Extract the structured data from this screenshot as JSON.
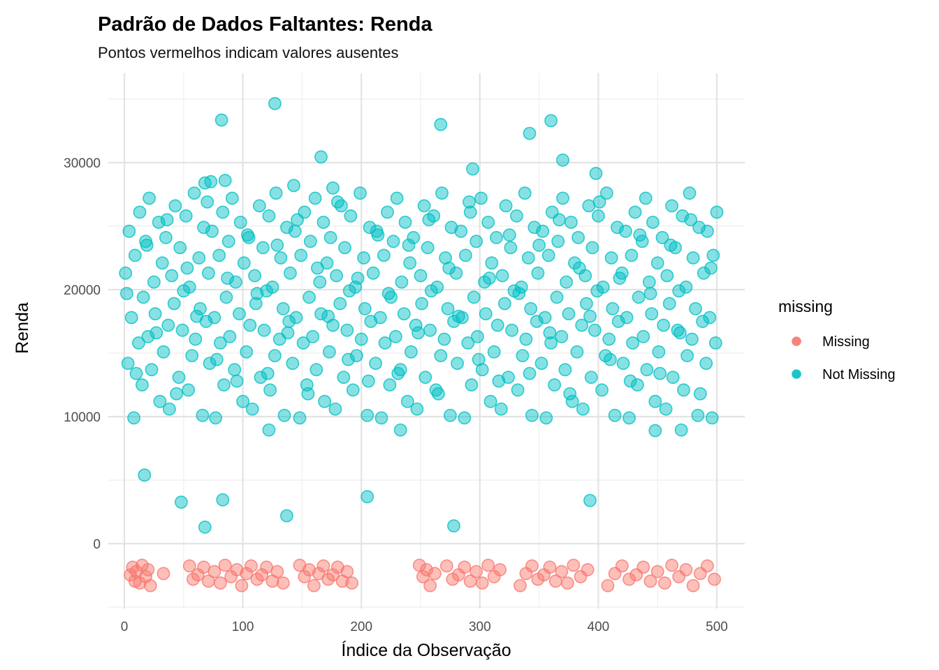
{
  "title": "Padrão de Dados Faltantes: Renda",
  "subtitle": "Pontos vermelhos indicam valores ausentes",
  "x_axis": {
    "label": "Índice da Observação",
    "ticks": [
      0,
      100,
      200,
      300,
      400,
      500
    ]
  },
  "y_axis": {
    "label": "Renda",
    "ticks": [
      0,
      10000,
      20000,
      30000
    ]
  },
  "legend": {
    "title": "missing",
    "items": [
      {
        "label": "Missing",
        "color": "#F8766D"
      },
      {
        "label": "Not Missing",
        "color": "#00BFC4"
      }
    ]
  },
  "colors": {
    "missing": "#F8766D",
    "not_missing": "#00BFC4",
    "grid_major": "#E3E3E3",
    "grid_minor": "#F1F1F1",
    "tick_text": "#4D4D4D",
    "background": "#FFFFFF"
  },
  "chart_data": {
    "type": "scatter",
    "title": "Padrão de Dados Faltantes: Renda",
    "subtitle": "Pontos vermelhos indicam valores ausentes",
    "xlabel": "Índice da Observação",
    "ylabel": "Renda",
    "xlim": [
      -14,
      523
    ],
    "ylim": [
      -5100,
      36800
    ],
    "x_ticks": [
      0,
      100,
      200,
      300,
      400,
      500
    ],
    "x_minor_ticks": [
      50,
      150,
      250,
      350,
      450
    ],
    "y_ticks": [
      0,
      10000,
      20000,
      30000
    ],
    "y_minor_ticks": [
      -5000,
      5000,
      15000,
      25000,
      35000
    ],
    "grid": "major+minor",
    "legend_position": "right",
    "legend_title": "missing",
    "series": [
      {
        "name": "Missing",
        "color": "#F8766D",
        "x": [
          5,
          7,
          9,
          10,
          13,
          15,
          18,
          20,
          22,
          33,
          55,
          58,
          62,
          67,
          71,
          76,
          81,
          85,
          90,
          95,
          99,
          103,
          107,
          112,
          116,
          120,
          125,
          129,
          134,
          148,
          152,
          156,
          160,
          164,
          168,
          172,
          176,
          180,
          184,
          188,
          192,
          249,
          252,
          255,
          258,
          262,
          272,
          277,
          282,
          287,
          292,
          297,
          302,
          307,
          312,
          317,
          334,
          339,
          344,
          349,
          354,
          359,
          364,
          369,
          374,
          379,
          385,
          391,
          408,
          414,
          420,
          426,
          432,
          438,
          444,
          450,
          456,
          462,
          468,
          474,
          480,
          486,
          492,
          498
        ],
        "y": [
          -2450,
          -1850,
          -2950,
          -2200,
          -3100,
          -1700,
          -2600,
          -2050,
          -3300,
          -2350,
          -1750,
          -2800,
          -2450,
          -1850,
          -2950,
          -2200,
          -3100,
          -1700,
          -2600,
          -2050,
          -3300,
          -2350,
          -1750,
          -2800,
          -2450,
          -1850,
          -2950,
          -2200,
          -3100,
          -1700,
          -2600,
          -2050,
          -3300,
          -2350,
          -1750,
          -2800,
          -2450,
          -1850,
          -2950,
          -2200,
          -3100,
          -1700,
          -2600,
          -2050,
          -3300,
          -2350,
          -1750,
          -2800,
          -2450,
          -1850,
          -2950,
          -2200,
          -3100,
          -1700,
          -2600,
          -2050,
          -3300,
          -2350,
          -1750,
          -2800,
          -2450,
          -1850,
          -2950,
          -2200,
          -3100,
          -1700,
          -2600,
          -2050,
          -3300,
          -2350,
          -1750,
          -2800,
          -2450,
          -1850,
          -2950,
          -2200,
          -3100,
          -1700,
          -2600,
          -2050,
          -3300,
          -2350,
          -1750,
          -2800
        ]
      },
      {
        "name": "Not Missing",
        "color": "#00BFC4",
        "x": [
          1,
          3,
          4,
          6,
          8,
          9,
          12,
          13,
          15,
          16,
          18,
          20,
          21,
          23,
          25,
          26,
          29,
          30,
          32,
          33,
          35,
          37,
          38,
          40,
          42,
          43,
          46,
          47,
          49,
          50,
          52,
          54,
          55,
          57,
          59,
          60,
          63,
          64,
          66,
          67,
          69,
          71,
          72,
          74,
          76,
          77,
          80,
          81,
          83,
          84,
          86,
          88,
          89,
          91,
          93,
          94,
          97,
          98,
          100,
          101,
          103,
          105,
          106,
          108,
          110,
          111,
          114,
          115,
          117,
          118,
          120,
          122,
          123,
          125,
          127,
          128,
          131,
          132,
          134,
          135,
          137,
          139,
          140,
          142,
          144,
          145,
          148,
          149,
          151,
          152,
          154,
          156,
          157,
          159,
          161,
          162,
          165,
          166,
          168,
          169,
          171,
          173,
          174,
          176,
          178,
          179,
          182,
          183,
          185,
          186,
          188,
          190,
          191,
          193,
          195,
          196,
          199,
          200,
          202,
          203,
          205,
          207,
          208,
          210,
          212,
          213,
          216,
          217,
          219,
          220,
          222,
          224,
          225,
          227,
          229,
          230,
          233,
          234,
          236,
          237,
          239,
          241,
          242,
          244,
          246,
          247,
          250,
          251,
          253,
          254,
          256,
          258,
          259,
          261,
          263,
          264,
          267,
          268,
          270,
          271,
          273,
          275,
          276,
          278,
          280,
          281,
          284,
          285,
          287,
          288,
          290,
          292,
          293,
          295,
          297,
          298,
          301,
          302,
          304,
          305,
          307,
          309,
          310,
          312,
          314,
          315,
          318,
          319,
          321,
          322,
          324,
          326,
          327,
          329,
          331,
          332,
          335,
          336,
          338,
          339,
          341,
          343,
          344,
          346,
          348,
          349,
          352,
          353,
          355,
          356,
          358,
          360,
          361,
          363,
          365,
          366,
          369,
          370,
          372,
          373,
          375,
          377,
          378,
          380,
          382,
          383,
          386,
          387,
          389,
          390,
          392,
          394,
          395,
          397,
          399,
          400,
          403,
          404,
          406,
          407,
          409,
          411,
          412,
          414,
          416,
          417,
          420,
          421,
          423,
          424,
          426,
          428,
          429,
          431,
          433,
          434,
          437,
          438,
          440,
          441,
          443,
          445,
          446,
          448,
          450,
          451,
          454,
          455,
          457,
          458,
          460,
          462,
          463,
          465,
          467,
          468,
          471,
          472,
          474,
          475,
          477,
          479,
          480,
          482,
          484,
          485,
          488,
          489,
          491,
          492,
          494,
          496,
          497,
          499,
          500,
          2,
          10,
          19,
          27,
          36,
          44,
          53,
          61,
          70,
          78,
          87,
          95,
          104,
          112,
          121,
          129,
          138,
          146,
          155,
          163,
          172,
          180,
          189,
          197,
          206,
          214,
          223,
          231,
          240,
          248,
          257,
          265,
          274,
          282,
          291,
          299,
          308,
          316,
          325,
          333,
          342,
          350,
          359,
          367,
          376,
          384,
          393,
          401,
          410,
          418,
          427,
          435,
          444,
          452,
          461,
          469,
          478,
          486,
          495,
          127,
          82,
          267,
          360,
          342,
          166,
          370,
          294,
          398,
          68,
          73,
          85,
          143,
          176,
          68,
          278,
          137,
          205,
          83,
          393,
          17,
          48,
          122,
          233,
          448,
          470
        ],
        "y": [
          21300,
          14200,
          24600,
          17800,
          9900,
          22700,
          15800,
          26100,
          12500,
          19400,
          23800,
          16300,
          27200,
          13700,
          20600,
          18100,
          25300,
          11200,
          22100,
          15100,
          24100,
          17200,
          10600,
          21100,
          18900,
          26600,
          13100,
          23300,
          16800,
          19900,
          25800,
          12100,
          20200,
          14800,
          27600,
          16100,
          22500,
          18500,
          10100,
          24900,
          17500,
          21300,
          14200,
          24600,
          17800,
          9900,
          22700,
          15800,
          26100,
          12500,
          19400,
          23800,
          16300,
          27200,
          13700,
          20600,
          18100,
          25300,
          11200,
          22100,
          15100,
          24100,
          17200,
          10600,
          21100,
          18900,
          26600,
          13100,
          23300,
          16800,
          19900,
          25800,
          12100,
          20200,
          14800,
          27600,
          16100,
          22500,
          18500,
          10100,
          24900,
          17500,
          21300,
          14200,
          24600,
          17800,
          9900,
          22700,
          15800,
          26100,
          12500,
          19400,
          23800,
          16300,
          27200,
          13700,
          20600,
          18100,
          25300,
          11200,
          22100,
          15100,
          24100,
          17200,
          10600,
          21100,
          18900,
          26600,
          13100,
          23300,
          16800,
          19900,
          25800,
          12100,
          20200,
          14800,
          27600,
          16100,
          22500,
          18500,
          10100,
          24900,
          17500,
          21300,
          14200,
          24600,
          17800,
          9900,
          22700,
          15800,
          26100,
          12500,
          19400,
          23800,
          16300,
          27200,
          13700,
          20600,
          18100,
          25300,
          11200,
          22100,
          15100,
          24100,
          17200,
          10600,
          21100,
          18900,
          26600,
          13100,
          23300,
          16800,
          19900,
          25800,
          12100,
          20200,
          14800,
          27600,
          16100,
          22500,
          18500,
          10100,
          24900,
          17500,
          21300,
          14200,
          24600,
          17800,
          9900,
          22700,
          15800,
          26100,
          12500,
          19400,
          23800,
          16300,
          27200,
          13700,
          20600,
          18100,
          25300,
          11200,
          22100,
          15100,
          24100,
          17200,
          10600,
          21100,
          18900,
          26600,
          13100,
          23300,
          16800,
          19900,
          25800,
          12100,
          20200,
          14800,
          27600,
          16100,
          22500,
          18500,
          10100,
          24900,
          17500,
          21300,
          14200,
          24600,
          17800,
          9900,
          22700,
          15800,
          26100,
          12500,
          19400,
          23800,
          16300,
          27200,
          13700,
          20600,
          18100,
          25300,
          11200,
          22100,
          15100,
          24100,
          17200,
          10600,
          21100,
          18900,
          26600,
          13100,
          23300,
          16800,
          19900,
          25800,
          12100,
          20200,
          14800,
          27600,
          16100,
          22500,
          18500,
          10100,
          24900,
          17500,
          21300,
          14200,
          24600,
          17800,
          9900,
          22700,
          15800,
          26100,
          12500,
          19400,
          23800,
          16300,
          27200,
          13700,
          20600,
          18100,
          25300,
          11200,
          22100,
          15100,
          24100,
          17200,
          10600,
          21100,
          18900,
          26600,
          13100,
          23300,
          16800,
          19900,
          25800,
          12100,
          20200,
          14800,
          27600,
          16100,
          22500,
          18500,
          10100,
          24900,
          17500,
          21300,
          14200,
          24600,
          17800,
          9900,
          22700,
          15800,
          26100,
          19700,
          13400,
          23500,
          16600,
          25500,
          11800,
          21700,
          17900,
          26900,
          14500,
          20900,
          12800,
          24300,
          19700,
          13400,
          23500,
          16600,
          25500,
          11800,
          21700,
          17900,
          26900,
          14500,
          20900,
          12800,
          24300,
          19700,
          13400,
          23500,
          16600,
          25500,
          11800,
          21700,
          17900,
          26900,
          14500,
          20900,
          12800,
          24300,
          19700,
          13400,
          23500,
          16600,
          25500,
          11800,
          21700,
          17900,
          26900,
          14500,
          20900,
          12800,
          24300,
          19700,
          13400,
          23500,
          16600,
          25500,
          11800,
          21700,
          34650,
          33350,
          33000,
          33300,
          32300,
          30450,
          30200,
          29500,
          29150,
          28400,
          28500,
          28600,
          28200,
          28000,
          1300,
          1400,
          2200,
          3700,
          3450,
          3400,
          5400,
          3270,
          8950,
          8950,
          8900,
          8950
        ]
      }
    ]
  }
}
